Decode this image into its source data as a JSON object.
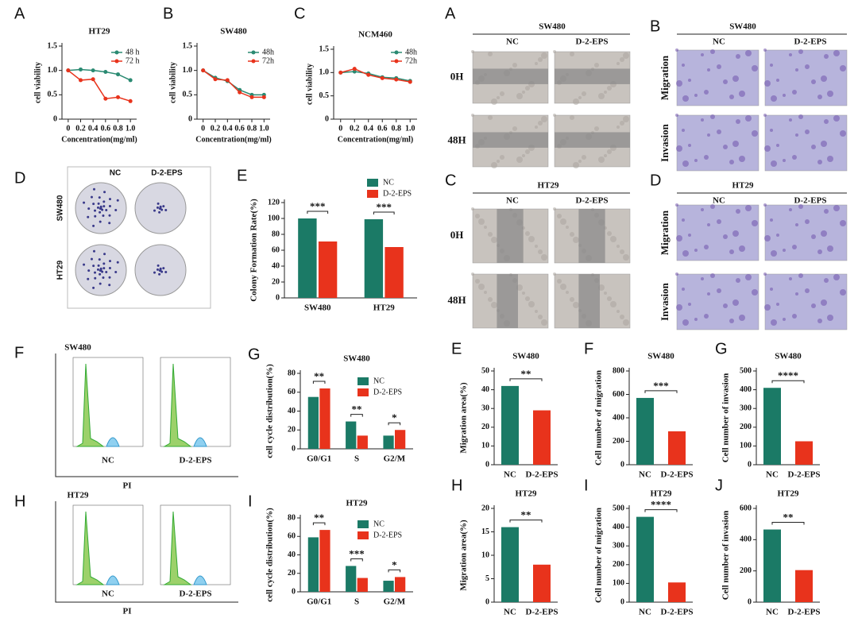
{
  "chart_data": [
    {
      "panel": "A",
      "type": "line",
      "title": "HT29",
      "x": [
        0,
        0.2,
        0.4,
        0.6,
        0.8,
        1.0
      ],
      "xlim": [
        -0.1,
        1.1
      ],
      "xticks": [
        0,
        0.2,
        0.4,
        0.6,
        0.8,
        {
          "value": 1.0,
          "label": "1.0"
        }
      ],
      "ylim": [
        0,
        1.5
      ],
      "yticks": [
        0,
        0.5,
        {
          "value": 1.0,
          "label": "1.0"
        },
        1.5
      ],
      "xlabel": "Concentration(mg/ml)",
      "ylabel": "cell viability",
      "series": [
        {
          "name": "48 h",
          "color": "#2a8a72",
          "values": [
            1.0,
            1.02,
            1.0,
            0.97,
            0.92,
            0.8
          ]
        },
        {
          "name": "72 h",
          "color": "#e8331c",
          "values": [
            1.0,
            0.8,
            0.82,
            0.42,
            0.45,
            0.37
          ]
        }
      ]
    },
    {
      "panel": "B",
      "type": "line",
      "title": "SW480",
      "x": [
        0,
        0.2,
        0.4,
        0.6,
        0.8,
        1.0
      ],
      "xlim": [
        -0.1,
        1.1
      ],
      "xticks": [
        0,
        0.2,
        0.4,
        0.6,
        0.8,
        {
          "value": 1.0,
          "label": "1.0"
        }
      ],
      "ylim": [
        0,
        1.5
      ],
      "yticks": [
        0,
        0.5,
        {
          "value": 1.0,
          "label": "1.0"
        },
        1.5
      ],
      "xlabel": "Concentration(mg/ml)",
      "ylabel": "cell viability",
      "series": [
        {
          "name": "48h",
          "color": "#2a8a72",
          "values": [
            1.0,
            0.85,
            0.78,
            0.6,
            0.5,
            0.5
          ]
        },
        {
          "name": "72h",
          "color": "#e8331c",
          "values": [
            1.0,
            0.82,
            0.8,
            0.55,
            0.45,
            0.45
          ]
        }
      ]
    },
    {
      "panel": "C",
      "type": "line",
      "title": "NCM460",
      "x": [
        0,
        0.2,
        0.4,
        0.6,
        0.8,
        1.0
      ],
      "xlim": [
        -0.1,
        1.1
      ],
      "xticks": [
        0,
        0.2,
        0.4,
        0.6,
        0.8,
        {
          "value": 1.0,
          "label": "1.0"
        }
      ],
      "ylim": [
        0,
        1.5
      ],
      "yticks": [
        0,
        0.5,
        {
          "value": 1.0,
          "label": "1.0"
        },
        1.5
      ],
      "xlabel": "Concentration(mg/ml)",
      "ylabel": "cell viability",
      "series": [
        {
          "name": "48h",
          "color": "#2a8a72",
          "values": [
            1.0,
            1.02,
            0.98,
            0.9,
            0.88,
            0.82
          ]
        },
        {
          "name": "72h",
          "color": "#e8331c",
          "values": [
            1.0,
            1.08,
            0.95,
            0.88,
            0.85,
            0.8
          ]
        }
      ]
    },
    {
      "panel": "E",
      "type": "bar",
      "categories": [
        "SW480",
        "HT29"
      ],
      "ylim": [
        0,
        120
      ],
      "yticks": [
        0,
        20,
        40,
        60,
        80,
        100,
        120
      ],
      "ylabel": "Colony Formation Rate(%)",
      "annotations": [
        "***",
        "***"
      ],
      "series": [
        {
          "name": "NC",
          "color": "#1b7a66",
          "values": [
            100,
            99
          ]
        },
        {
          "name": "D-2-EPS",
          "color": "#e8331c",
          "values": [
            71,
            64
          ]
        }
      ]
    },
    {
      "panel": "G",
      "type": "bar",
      "title": "SW480",
      "categories": [
        "G0/G1",
        "S",
        "G2/M"
      ],
      "ylim": [
        0,
        80
      ],
      "yticks": [
        0,
        20,
        40,
        60,
        80
      ],
      "ylabel": "cell cycle distribution(%)",
      "annotations": [
        "**",
        "**",
        "*"
      ],
      "series": [
        {
          "name": "NC",
          "color": "#1b7a66",
          "values": [
            55,
            29,
            14
          ]
        },
        {
          "name": "D-2-EPS",
          "color": "#e8331c",
          "values": [
            64,
            14,
            20
          ]
        }
      ]
    },
    {
      "panel": "I",
      "type": "bar",
      "title": "HT29",
      "categories": [
        "G0/G1",
        "S",
        "G2/M"
      ],
      "ylim": [
        0,
        80
      ],
      "yticks": [
        0,
        20,
        40,
        60,
        80
      ],
      "ylabel": "cell cycle distribution(%)",
      "annotations": [
        "**",
        "***",
        "*"
      ],
      "series": [
        {
          "name": "NC",
          "color": "#1b7a66",
          "values": [
            59,
            28,
            12
          ]
        },
        {
          "name": "D-2-EPS",
          "color": "#e8331c",
          "values": [
            67,
            15,
            16
          ]
        }
      ]
    },
    {
      "panel": "E",
      "type": "bar",
      "title": "SW480",
      "categories": [
        "NC",
        "D-2-EPS"
      ],
      "values": [
        42,
        29
      ],
      "colors": [
        "#1b7a66",
        "#e8331c"
      ],
      "ylim": [
        0,
        50
      ],
      "yticks": [
        0,
        10,
        20,
        30,
        40,
        50
      ],
      "ylabel": "Migration area(%)",
      "annotations": [
        "**"
      ]
    },
    {
      "panel": "F",
      "type": "bar",
      "title": "SW480",
      "categories": [
        "NC",
        "D-2-EPS"
      ],
      "values": [
        570,
        285
      ],
      "colors": [
        "#1b7a66",
        "#e8331c"
      ],
      "ylim": [
        0,
        800
      ],
      "yticks": [
        0,
        200,
        400,
        600,
        800
      ],
      "ylabel": "Cell number of migration",
      "annotations": [
        "***"
      ]
    },
    {
      "panel": "G",
      "type": "bar",
      "title": "SW480",
      "categories": [
        "NC",
        "D-2-EPS"
      ],
      "values": [
        410,
        125
      ],
      "colors": [
        "#1b7a66",
        "#e8331c"
      ],
      "ylim": [
        0,
        500
      ],
      "yticks": [
        0,
        100,
        200,
        300,
        400,
        500
      ],
      "ylabel": "Cell number of invasion",
      "annotations": [
        "****"
      ]
    },
    {
      "panel": "H",
      "type": "bar",
      "title": "HT29",
      "categories": [
        "NC",
        "D-2-EPS"
      ],
      "values": [
        16,
        8
      ],
      "colors": [
        "#1b7a66",
        "#e8331c"
      ],
      "ylim": [
        0,
        20
      ],
      "yticks": [
        0,
        5,
        10,
        15,
        20
      ],
      "ylabel": "Migration area(%)",
      "annotations": [
        "**"
      ]
    },
    {
      "panel": "I",
      "type": "bar",
      "title": "HT29",
      "categories": [
        "NC",
        "D-2-EPS"
      ],
      "values": [
        455,
        105
      ],
      "colors": [
        "#1b7a66",
        "#e8331c"
      ],
      "ylim": [
        0,
        500
      ],
      "yticks": [
        0,
        100,
        200,
        300,
        400,
        500
      ],
      "ylabel": "Cell number of migration",
      "annotations": [
        "****"
      ]
    },
    {
      "panel": "J",
      "type": "bar",
      "title": "HT29",
      "categories": [
        "NC",
        "D-2-EPS"
      ],
      "values": [
        465,
        205
      ],
      "colors": [
        "#1b7a66",
        "#e8331c"
      ],
      "ylim": [
        0,
        600
      ],
      "yticks": [
        0,
        200,
        400,
        600
      ],
      "ylabel": "Cell number of invasion",
      "annotations": [
        "**"
      ]
    }
  ],
  "panels": [
    {
      "letter": "D",
      "columns": [
        "NC",
        "D-2-EPS"
      ],
      "rows": [
        "SW480",
        "HT29"
      ]
    },
    {
      "letter": "A",
      "title": "SW480",
      "columns": [
        "NC",
        "D-2-EPS"
      ],
      "rows": [
        "0H",
        "48H"
      ]
    },
    {
      "letter": "B",
      "title": "SW480",
      "columns": [
        "NC",
        "D-2-EPS"
      ],
      "rows": [
        "Migration",
        "Invasion"
      ]
    },
    {
      "letter": "C",
      "title": "HT29",
      "columns": [
        "NC",
        "D-2-EPS"
      ],
      "rows": [
        "0H",
        "48H"
      ]
    },
    {
      "letter": "D",
      "title": "HT29",
      "columns": [
        "NC",
        "D-2-EPS"
      ],
      "rows": [
        "Migration",
        "Invasion"
      ]
    },
    {
      "letter": "F",
      "title": "SW480",
      "columns": [
        "NC",
        "D-2-EPS"
      ],
      "xlabel": "PI"
    },
    {
      "letter": "H",
      "title": "HT29",
      "columns": [
        "NC",
        "D-2-EPS"
      ],
      "xlabel": "PI"
    }
  ]
}
